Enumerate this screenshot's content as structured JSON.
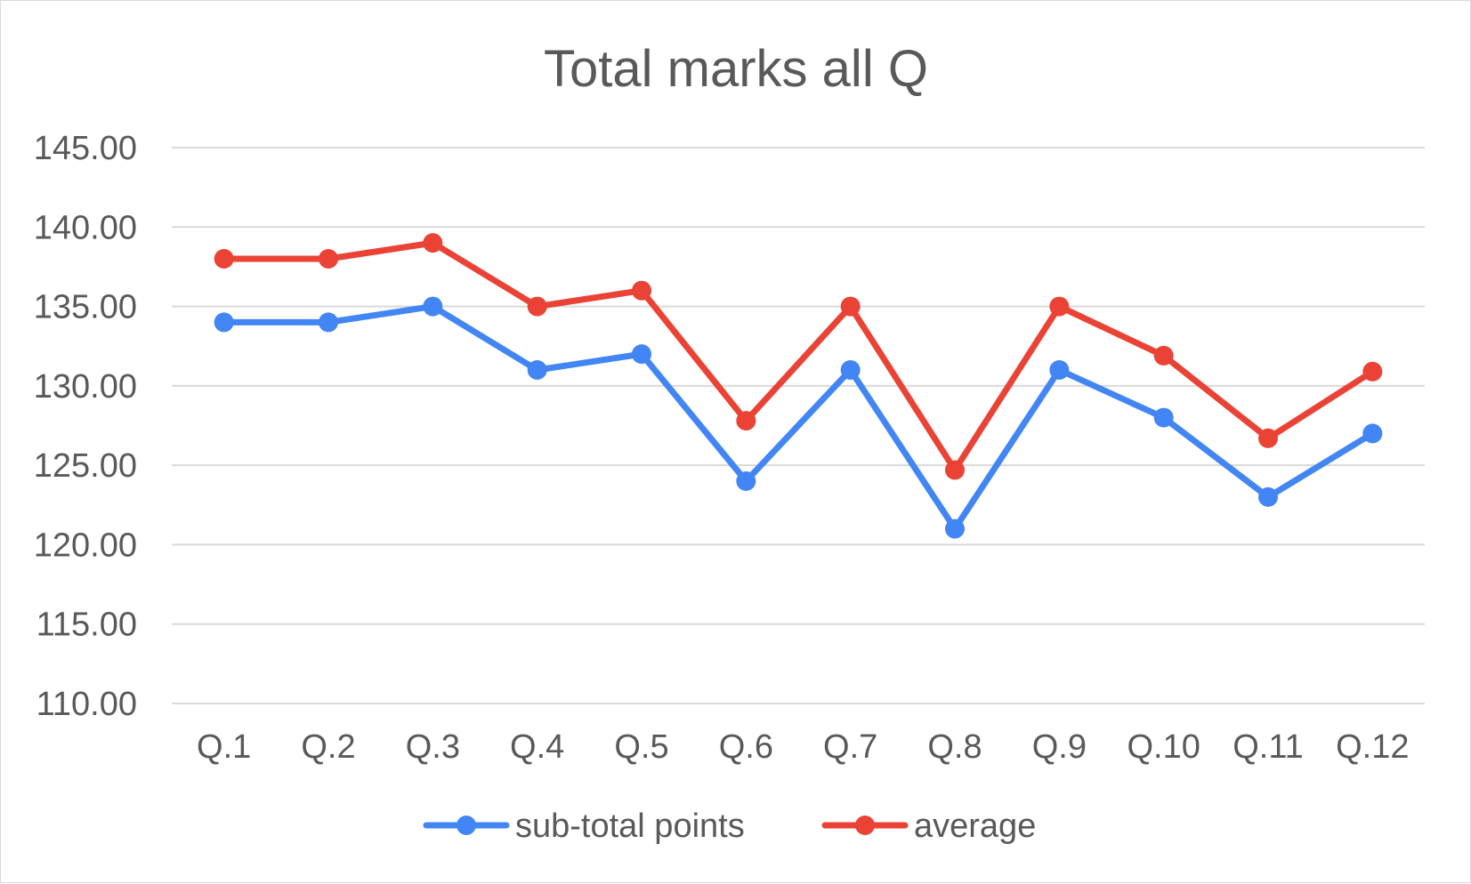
{
  "chart_data": {
    "type": "line",
    "title": "Total marks all Q",
    "xlabel": "",
    "ylabel": "",
    "categories": [
      "Q.1",
      "Q.2",
      "Q.3",
      "Q.4",
      "Q.5",
      "Q.6",
      "Q.7",
      "Q.8",
      "Q.9",
      "Q.10",
      "Q.11",
      "Q.12"
    ],
    "ylim": [
      110,
      145
    ],
    "yticks": [
      "110.00",
      "115.00",
      "120.00",
      "125.00",
      "130.00",
      "135.00",
      "140.00",
      "145.00"
    ],
    "grid": true,
    "legend_position": "bottom",
    "series": [
      {
        "name": "sub-total points",
        "color": "#4285f4",
        "values": [
          134,
          134,
          135,
          131,
          132,
          124,
          131,
          121,
          131,
          128,
          123,
          127
        ]
      },
      {
        "name": "average",
        "color": "#ea4335",
        "values": [
          138,
          138,
          139,
          135,
          136,
          127.8,
          135,
          124.7,
          135,
          131.9,
          126.7,
          130.9
        ]
      }
    ]
  }
}
